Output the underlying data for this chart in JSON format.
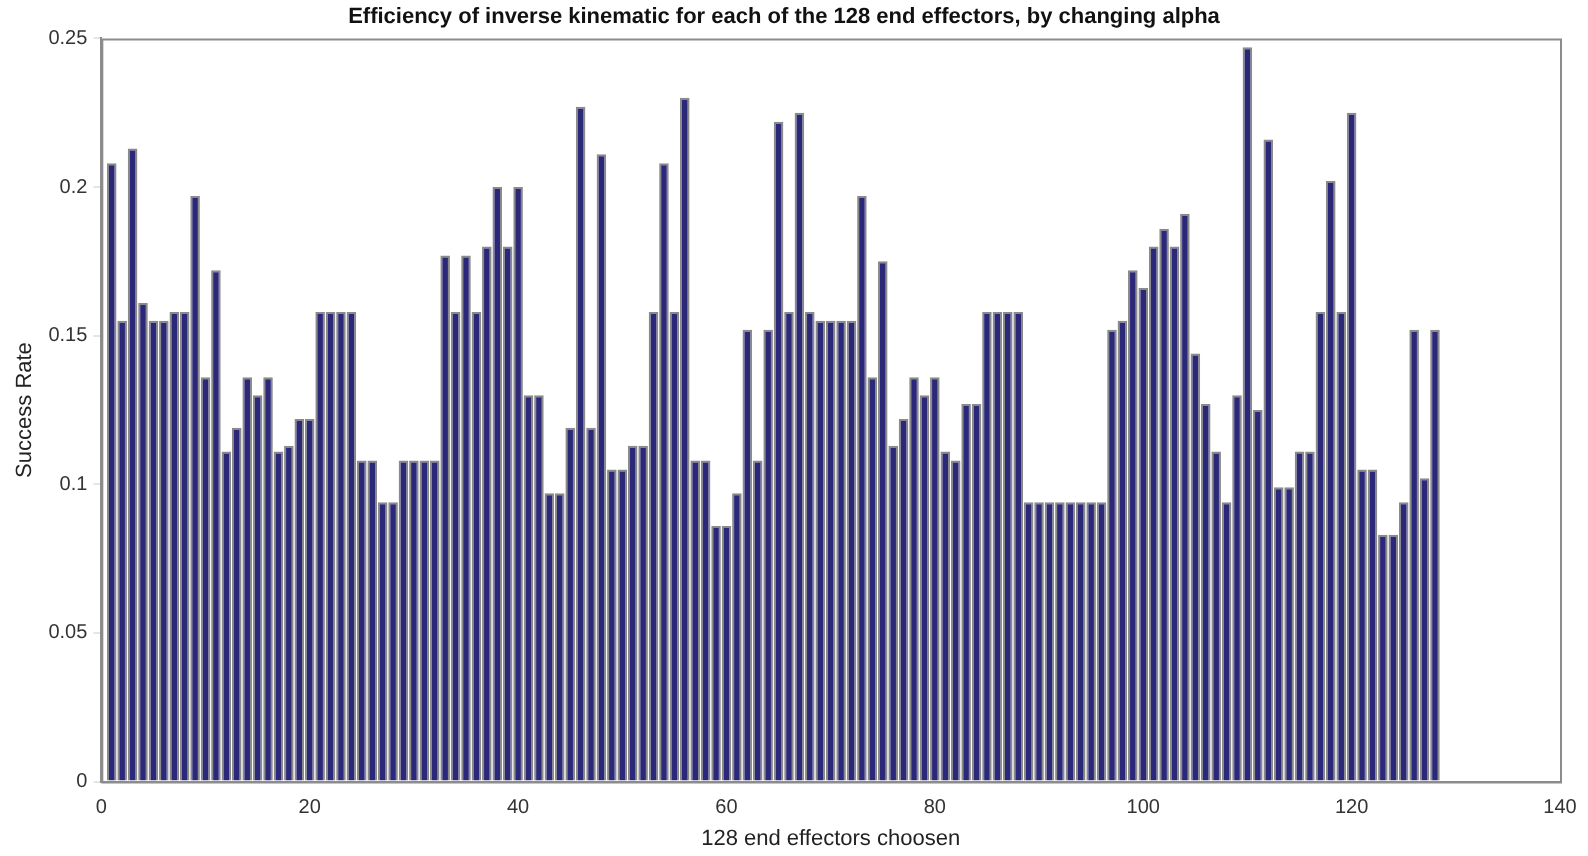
{
  "chart_data": {
    "type": "bar",
    "title": "Efficiency of inverse kinematic for each of the 128 end effectors, by changing alpha",
    "xlabel": "128 end effectors choosen",
    "ylabel": "Success Rate",
    "color": "#2c2879",
    "x": [
      1,
      2,
      3,
      4,
      5,
      6,
      7,
      8,
      9,
      10,
      11,
      12,
      13,
      14,
      15,
      16,
      17,
      18,
      19,
      20,
      21,
      22,
      23,
      24,
      25,
      26,
      27,
      28,
      29,
      30,
      31,
      32,
      33,
      34,
      35,
      36,
      37,
      38,
      39,
      40,
      41,
      42,
      43,
      44,
      45,
      46,
      47,
      48,
      49,
      50,
      51,
      52,
      53,
      54,
      55,
      56,
      57,
      58,
      59,
      60,
      61,
      62,
      63,
      64,
      65,
      66,
      67,
      68,
      69,
      70,
      71,
      72,
      73,
      74,
      75,
      76,
      77,
      78,
      79,
      80,
      81,
      82,
      83,
      84,
      85,
      86,
      87,
      88,
      89,
      90,
      91,
      92,
      93,
      94,
      95,
      96,
      97,
      98,
      99,
      100,
      101,
      102,
      103,
      104,
      105,
      106,
      107,
      108,
      109,
      110,
      111,
      112,
      113,
      114,
      115,
      116,
      117,
      118,
      119,
      120,
      121,
      122,
      123,
      124,
      125,
      126,
      127,
      128
    ],
    "values": [
      0.208,
      0.155,
      0.213,
      0.161,
      0.155,
      0.155,
      0.158,
      0.158,
      0.197,
      0.136,
      0.172,
      0.111,
      0.119,
      0.136,
      0.13,
      0.136,
      0.111,
      0.113,
      0.122,
      0.122,
      0.158,
      0.158,
      0.158,
      0.158,
      0.108,
      0.108,
      0.094,
      0.094,
      0.108,
      0.108,
      0.108,
      0.108,
      0.177,
      0.158,
      0.177,
      0.158,
      0.18,
      0.2,
      0.18,
      0.2,
      0.13,
      0.13,
      0.097,
      0.097,
      0.119,
      0.227,
      0.119,
      0.211,
      0.105,
      0.105,
      0.113,
      0.113,
      0.158,
      0.208,
      0.158,
      0.23,
      0.108,
      0.108,
      0.086,
      0.086,
      0.097,
      0.152,
      0.108,
      0.152,
      0.222,
      0.158,
      0.225,
      0.158,
      0.155,
      0.155,
      0.155,
      0.155,
      0.197,
      0.136,
      0.175,
      0.113,
      0.122,
      0.136,
      0.13,
      0.136,
      0.111,
      0.108,
      0.127,
      0.127,
      0.158,
      0.158,
      0.158,
      0.158,
      0.094,
      0.094,
      0.094,
      0.094,
      0.094,
      0.094,
      0.094,
      0.094,
      0.152,
      0.155,
      0.172,
      0.166,
      0.18,
      0.186,
      0.18,
      0.191,
      0.144,
      0.127,
      0.111,
      0.094,
      0.13,
      0.247,
      0.125,
      0.216,
      0.099,
      0.099,
      0.111,
      0.111,
      0.158,
      0.202,
      0.158,
      0.225,
      0.105,
      0.105,
      0.083,
      0.083,
      0.094,
      0.152,
      0.102,
      0.152
    ],
    "xlim": [
      0,
      140
    ],
    "xticks": [
      0,
      20,
      40,
      60,
      80,
      100,
      120,
      140
    ],
    "ylim": [
      0,
      0.25
    ],
    "yticks": [
      0,
      0.05,
      0.1,
      0.15,
      0.2,
      0.25
    ]
  }
}
